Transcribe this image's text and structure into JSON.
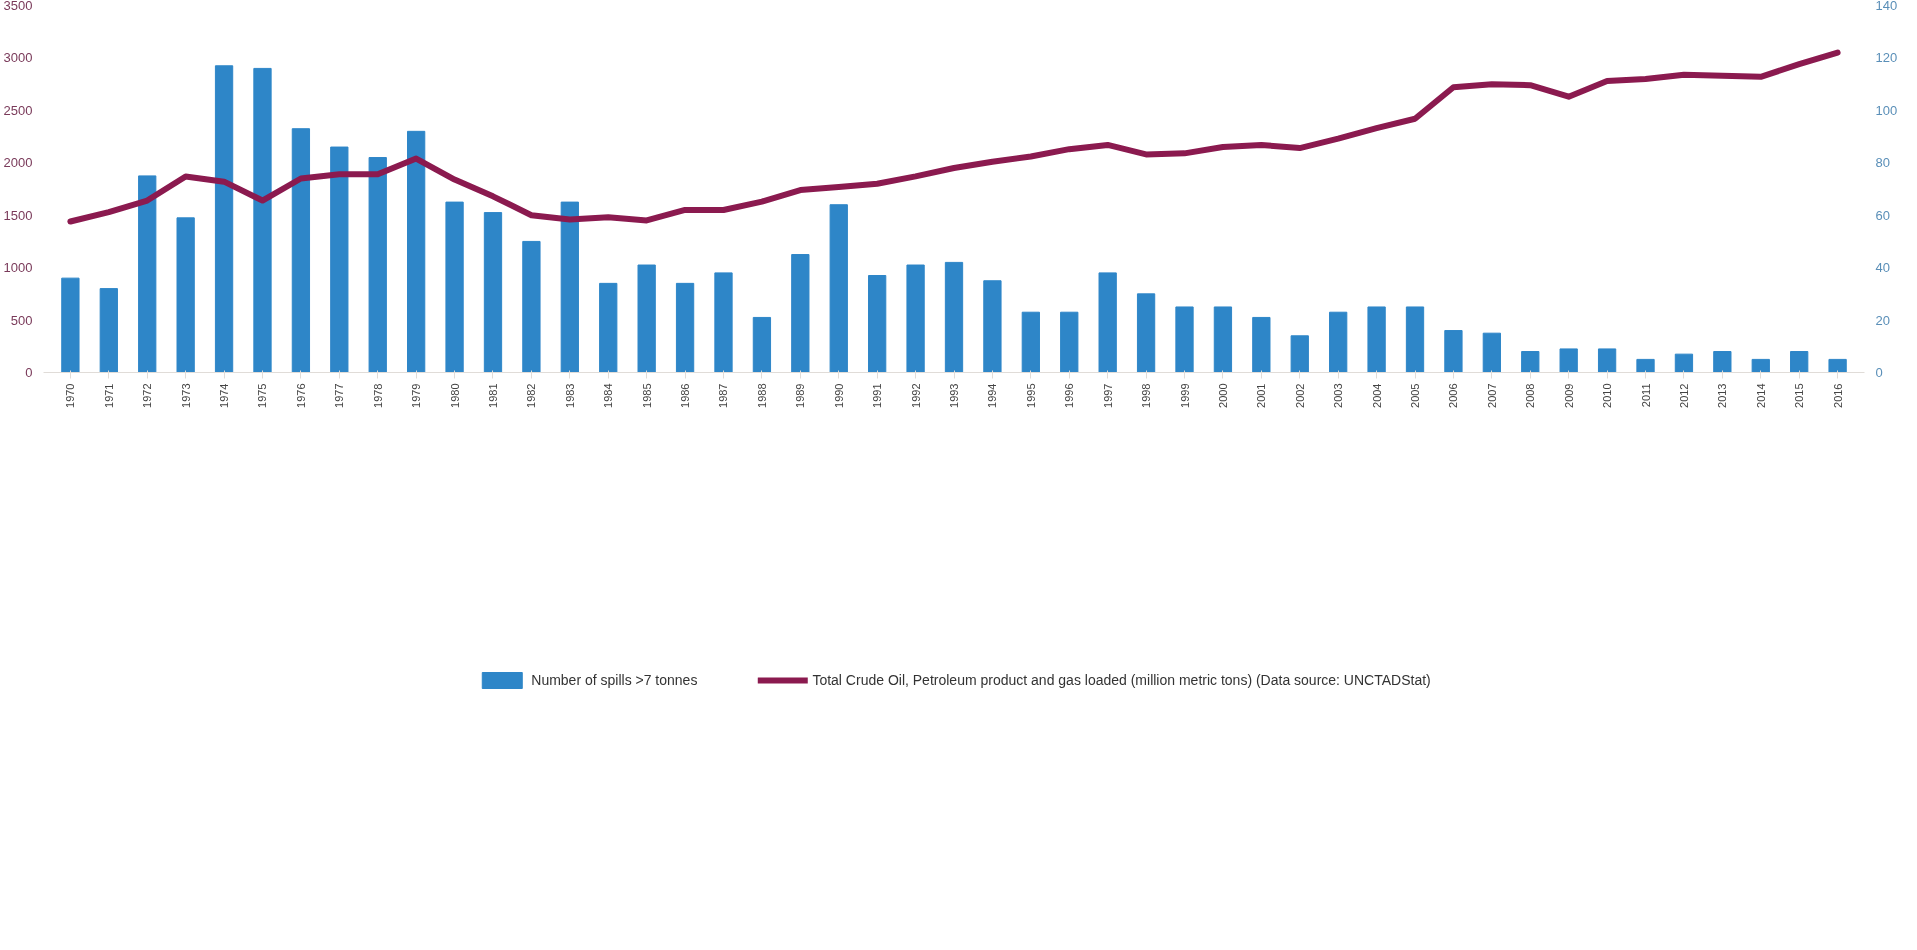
{
  "chart_data": {
    "type": "bar",
    "categories": [
      "1970",
      "1971",
      "1972",
      "1973",
      "1974",
      "1975",
      "1976",
      "1977",
      "1978",
      "1979",
      "1980",
      "1981",
      "1982",
      "1983",
      "1984",
      "1985",
      "1986",
      "1987",
      "1988",
      "1989",
      "1990",
      "1991",
      "1992",
      "1993",
      "1994",
      "1995",
      "1996",
      "1997",
      "1998",
      "1999",
      "2000",
      "2001",
      "2002",
      "2003",
      "2004",
      "2005",
      "2006",
      "2007",
      "2008",
      "2009",
      "2010",
      "2011",
      "2012",
      "2013",
      "2014",
      "2015",
      "2016"
    ],
    "series": [
      {
        "name": "Number of spills >7 tonnes",
        "axis": "y2",
        "color": "#2e86c8",
        "values": [
          36,
          32,
          75,
          59,
          117,
          116,
          93,
          86,
          82,
          92,
          65,
          61,
          50,
          65,
          34,
          41,
          34,
          38,
          21,
          45,
          64,
          37,
          41,
          42,
          35,
          23,
          23,
          38,
          30,
          25,
          25,
          21,
          14,
          23,
          25,
          25,
          16,
          15,
          8,
          9,
          9,
          5,
          7,
          8,
          5,
          8,
          5
        ]
      },
      {
        "name": "Total Crude Oil, Petroleum product and gas loaded (million metric tons) (Data source: UNCTADStat)",
        "type": "line",
        "color": "#8b1a4f",
        "values": [
          1440,
          1530,
          1640,
          1870,
          1820,
          1640,
          1850,
          1890,
          1890,
          2040,
          1840,
          1680,
          1500,
          1460,
          1480,
          1450,
          1550,
          1550,
          1630,
          1740,
          1770,
          1800,
          1870,
          1950,
          2010,
          2060,
          2130,
          2170,
          2080,
          2090,
          2150,
          2170,
          2140,
          2230,
          2330,
          2420,
          2720,
          2750,
          2740,
          2630,
          2780,
          2800,
          2840,
          2830,
          2820,
          2940,
          3050
        ]
      }
    ],
    "ylim": [
      0,
      3500
    ],
    "yticks": [
      0,
      500,
      1000,
      1500,
      2000,
      2500,
      3000,
      3500
    ],
    "y2lim": [
      0,
      140
    ],
    "y2ticks": [
      0,
      20,
      40,
      60,
      80,
      100,
      120,
      140
    ],
    "grid": false,
    "legend": "bottom"
  }
}
